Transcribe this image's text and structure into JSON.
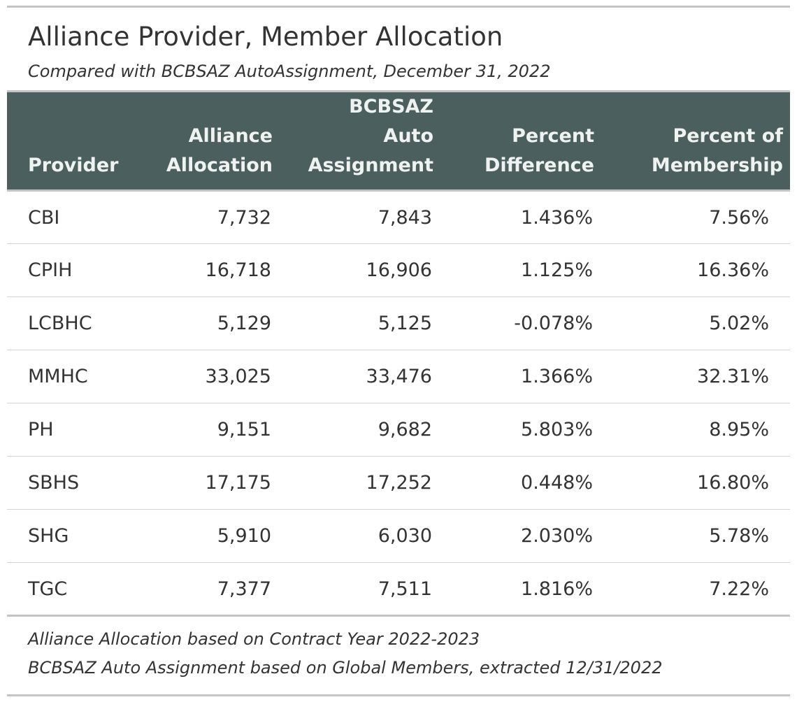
{
  "header": {
    "title": "Alliance Provider, Member Allocation",
    "subtitle": "Compared with BCBSAZ AutoAssignment, December 31, 2022"
  },
  "table": {
    "columns": [
      {
        "label_lines": [
          "Provider"
        ]
      },
      {
        "label_lines": [
          "Alliance",
          "Allocation"
        ]
      },
      {
        "label_lines": [
          "BCBSAZ",
          "Auto",
          "Assignment"
        ]
      },
      {
        "label_lines": [
          "Percent",
          "Difference"
        ]
      },
      {
        "label_lines": [
          "Percent of",
          "Membership"
        ]
      }
    ],
    "rows": [
      {
        "provider": "CBI",
        "alliance_allocation": "7,732",
        "auto_assignment": "7,843",
        "percent_difference": "1.436%",
        "percent_of_membership": "7.56%"
      },
      {
        "provider": "CPIH",
        "alliance_allocation": "16,718",
        "auto_assignment": "16,906",
        "percent_difference": "1.125%",
        "percent_of_membership": "16.36%"
      },
      {
        "provider": "LCBHC",
        "alliance_allocation": "5,129",
        "auto_assignment": "5,125",
        "percent_difference": "-0.078%",
        "percent_of_membership": "5.02%"
      },
      {
        "provider": "MMHC",
        "alliance_allocation": "33,025",
        "auto_assignment": "33,476",
        "percent_difference": "1.366%",
        "percent_of_membership": "32.31%"
      },
      {
        "provider": "PH",
        "alliance_allocation": "9,151",
        "auto_assignment": "9,682",
        "percent_difference": "5.803%",
        "percent_of_membership": "8.95%"
      },
      {
        "provider": "SBHS",
        "alliance_allocation": "17,175",
        "auto_assignment": "17,252",
        "percent_difference": "0.448%",
        "percent_of_membership": "16.80%"
      },
      {
        "provider": "SHG",
        "alliance_allocation": "5,910",
        "auto_assignment": "6,030",
        "percent_difference": "2.030%",
        "percent_of_membership": "5.78%"
      },
      {
        "provider": "TGC",
        "alliance_allocation": "7,377",
        "auto_assignment": "7,511",
        "percent_difference": "1.816%",
        "percent_of_membership": "7.22%"
      }
    ]
  },
  "footnotes": [
    "Alliance Allocation based on Contract Year 2022-2023",
    "BCBSAZ Auto Assignment based on Global Members, extracted 12/31/2022"
  ],
  "colors": {
    "header_background": "#4b5f5f",
    "header_text": "#eef2f0",
    "rule": "#c4c4c4",
    "body_text": "#333333"
  }
}
